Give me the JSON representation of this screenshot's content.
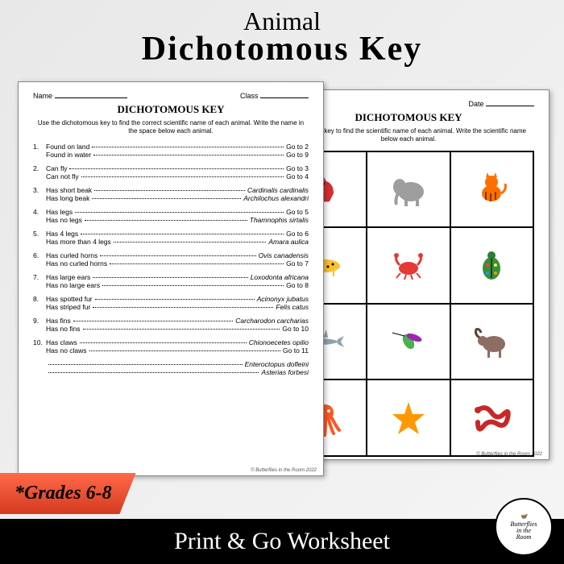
{
  "title": {
    "script": "Animal",
    "main": "Dichotomous Key"
  },
  "sheet_left": {
    "name_label": "Name",
    "class_label": "Class",
    "title": "DICHOTOMOUS KEY",
    "instructions": "Use the dichotomous key to find the correct scientific name of each animal. Write the name in the space below each animal.",
    "items": [
      {
        "n": "1.",
        "a": "Found on land",
        "ar": "Go to 2",
        "b": "Found in water",
        "br": "Go to 9"
      },
      {
        "n": "2.",
        "a": "Can fly",
        "ar": "Go to 3",
        "b": "Can not fly",
        "br": "Go to 4"
      },
      {
        "n": "3.",
        "a": "Has short beak",
        "ar": "Cardinalis cardinalis",
        "ai": true,
        "b": "Has long beak",
        "br": "Archilochus alexandri",
        "bi": true
      },
      {
        "n": "4.",
        "a": "Has legs",
        "ar": "Go to 5",
        "b": "Has no legs",
        "br": "Thamnophis sirtalis",
        "bi": true
      },
      {
        "n": "5.",
        "a": "Has 4 legs",
        "ar": "Go to 6",
        "b": "Has more than 4 legs",
        "br": "Amara aulica",
        "bi": true
      },
      {
        "n": "6.",
        "a": "Has curled horns",
        "ar": "Ovis canadensis",
        "ai": true,
        "b": "Has no curled horns",
        "br": "Go to 7"
      },
      {
        "n": "7.",
        "a": "Has large ears",
        "ar": "Loxodonta africana",
        "ai": true,
        "b": "Has no large ears",
        "br": "Go to 8"
      },
      {
        "n": "8.",
        "a": "Has spotted fur",
        "ar": "Acinonyx jubatus",
        "ai": true,
        "b": "Has striped fur",
        "br": "Felis catus",
        "bi": true
      },
      {
        "n": "9.",
        "a": "Has fins",
        "ar": "Carcharodon carcharias",
        "ai": true,
        "b": "Has no fins",
        "br": "Go to 10"
      },
      {
        "n": "10.",
        "a": "Has claws",
        "ar": "Chionoecetes opilio",
        "ai": true,
        "b": "Has no claws",
        "br": "Go to 11"
      },
      {
        "n": "",
        "a": "",
        "ar": "Enteroctopus dofleini",
        "ai": true,
        "b": "",
        "br": "Asterias forbesi",
        "bi": true
      }
    ],
    "copyright": "© Butterflies in the Room 2022"
  },
  "sheet_right": {
    "date_label": "Date",
    "title": "DICHOTOMOUS KEY",
    "instructions": "chotomous key to find the scientific name of each animal. Write the scientific name below each animal.",
    "animals": [
      {
        "name": "cardinal",
        "color": "#d32f2f"
      },
      {
        "name": "elephant",
        "color": "#9e9e9e"
      },
      {
        "name": "cat",
        "color": "#ff6f00"
      },
      {
        "name": "cheetah",
        "color": "#fbc02d"
      },
      {
        "name": "crab",
        "color": "#e53935"
      },
      {
        "name": "beetle",
        "color": "#388e3c"
      },
      {
        "name": "shark",
        "color": "#90a4ae"
      },
      {
        "name": "hummingbird",
        "color": "#4caf50"
      },
      {
        "name": "ram",
        "color": "#8d6e63"
      },
      {
        "name": "octopus",
        "color": "#ff5722"
      },
      {
        "name": "starfish",
        "color": "#ff9800"
      },
      {
        "name": "snake",
        "color": "#c62828"
      }
    ],
    "copyright": "© Butterflies in the Room 2022"
  },
  "grade": "*Grades 6-8",
  "footer": "Print & Go Worksheet",
  "logo": {
    "line1": "Butterflies",
    "line2": "in the",
    "line3": "Room"
  }
}
